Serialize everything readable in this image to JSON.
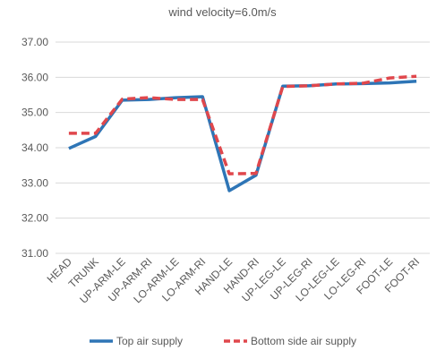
{
  "chart_data": {
    "type": "line",
    "title": "wind velocity=6.0m/s",
    "xlabel": "",
    "ylabel": "",
    "ylim": [
      31.0,
      37.0
    ],
    "yticks": [
      "31.00",
      "32.00",
      "33.00",
      "34.00",
      "35.00",
      "36.00",
      "37.00"
    ],
    "grid": true,
    "legend_position": "bottom",
    "categories": [
      "HEAD",
      "TRUNK",
      "UP-ARM-LE",
      "UP-ARM-RI",
      "LO-ARM-LE",
      "LO-ARM-RI",
      "HAND-LE",
      "HAND-RI",
      "UP-LEG-LE",
      "UP-LEG-RI",
      "LO-LEG-LE",
      "LO-LEG-RI",
      "FOOT-LE",
      "FOOT-RI"
    ],
    "series": [
      {
        "name": "Top air supply",
        "color": "#2E75B6",
        "style": "solid",
        "values": [
          33.98,
          34.32,
          35.35,
          35.37,
          35.42,
          35.45,
          32.78,
          33.22,
          35.75,
          35.76,
          35.81,
          35.82,
          35.84,
          35.89
        ]
      },
      {
        "name": "Bottom side air supply",
        "color": "#E0474C",
        "style": "dashed",
        "values": [
          34.41,
          34.41,
          35.38,
          35.42,
          35.37,
          35.37,
          33.26,
          33.27,
          35.74,
          35.76,
          35.81,
          35.83,
          35.98,
          36.03
        ]
      }
    ]
  }
}
